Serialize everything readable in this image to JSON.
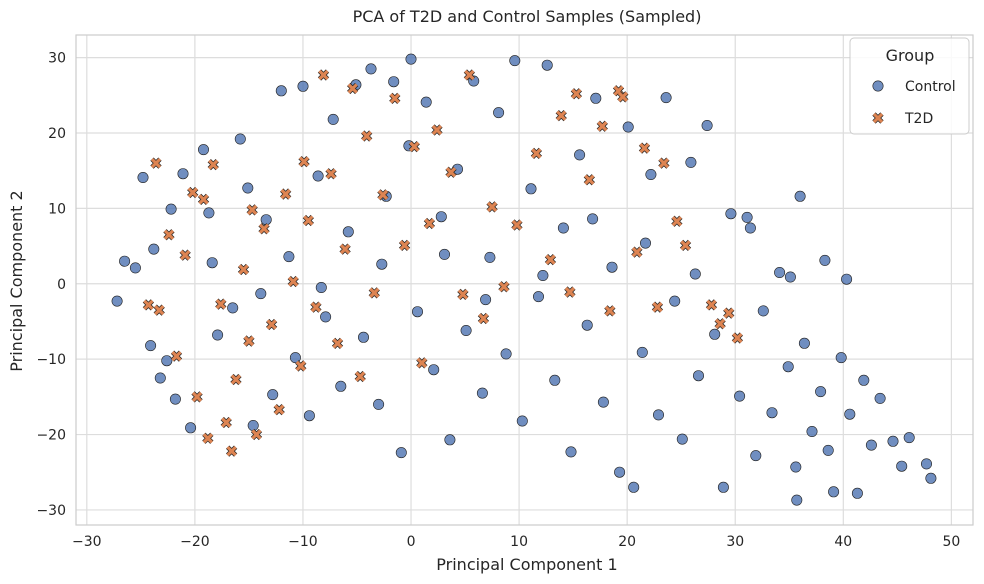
{
  "chart_data": {
    "type": "scatter",
    "title": "PCA of T2D and Control Samples (Sampled)",
    "xlabel": "Principal Component 1",
    "ylabel": "Principal Component 2",
    "xlim": [
      -31,
      52
    ],
    "ylim": [
      -32,
      33
    ],
    "xticks": [
      -30,
      -20,
      -10,
      0,
      10,
      20,
      30,
      40,
      50
    ],
    "yticks": [
      -30,
      -20,
      -10,
      0,
      10,
      20,
      30
    ],
    "xtick_labels": [
      "−30",
      "−20",
      "−10",
      "0",
      "10",
      "20",
      "30",
      "40",
      "50"
    ],
    "ytick_labels": [
      "−30",
      "−20",
      "−10",
      "0",
      "10",
      "20",
      "30"
    ],
    "grid": true,
    "legend": {
      "title": "Group",
      "placement": "top-right"
    },
    "series": [
      {
        "name": "Control",
        "marker": "circle",
        "color": "#4c72b0",
        "points": [
          [
            -27.2,
            -2.3
          ],
          [
            -26.5,
            3.0
          ],
          [
            -25.5,
            2.1
          ],
          [
            -24.8,
            14.1
          ],
          [
            -23.8,
            4.6
          ],
          [
            -23.2,
            -12.5
          ],
          [
            -22.6,
            -10.2
          ],
          [
            -21.8,
            -15.3
          ],
          [
            -21.1,
            14.6
          ],
          [
            -20.4,
            -19.1
          ],
          [
            -19.2,
            17.8
          ],
          [
            -18.7,
            9.4
          ],
          [
            -17.9,
            -6.8
          ],
          [
            -16.5,
            -3.2
          ],
          [
            -15.8,
            19.2
          ],
          [
            -15.1,
            12.7
          ],
          [
            -14.6,
            -18.8
          ],
          [
            -13.4,
            8.5
          ],
          [
            -12.8,
            -14.7
          ],
          [
            -12.0,
            25.6
          ],
          [
            -11.3,
            3.6
          ],
          [
            -10.7,
            -9.8
          ],
          [
            -10.0,
            26.2
          ],
          [
            -9.4,
            -17.5
          ],
          [
            -8.6,
            14.3
          ],
          [
            -7.9,
            -4.4
          ],
          [
            -7.2,
            21.8
          ],
          [
            -6.5,
            -13.6
          ],
          [
            -5.8,
            6.9
          ],
          [
            -5.1,
            26.4
          ],
          [
            -4.4,
            -7.1
          ],
          [
            -3.7,
            28.5
          ],
          [
            -3.0,
            -16.0
          ],
          [
            -2.3,
            11.6
          ],
          [
            -1.6,
            26.8
          ],
          [
            -0.9,
            -22.4
          ],
          [
            -0.2,
            18.3
          ],
          [
            0.0,
            29.8
          ],
          [
            0.6,
            -3.7
          ],
          [
            1.4,
            24.1
          ],
          [
            2.1,
            -11.4
          ],
          [
            2.8,
            8.9
          ],
          [
            3.6,
            -20.7
          ],
          [
            4.3,
            15.2
          ],
          [
            5.1,
            -6.2
          ],
          [
            5.8,
            26.9
          ],
          [
            6.6,
            -14.5
          ],
          [
            7.3,
            3.5
          ],
          [
            8.1,
            22.7
          ],
          [
            8.8,
            -9.3
          ],
          [
            9.6,
            29.6
          ],
          [
            10.3,
            -18.2
          ],
          [
            11.1,
            12.6
          ],
          [
            11.8,
            -1.7
          ],
          [
            12.6,
            29.0
          ],
          [
            13.3,
            -12.8
          ],
          [
            14.1,
            7.4
          ],
          [
            14.8,
            -22.3
          ],
          [
            15.6,
            17.1
          ],
          [
            16.3,
            -5.5
          ],
          [
            17.1,
            24.6
          ],
          [
            17.8,
            -15.7
          ],
          [
            18.6,
            2.2
          ],
          [
            19.3,
            -25.0
          ],
          [
            20.1,
            20.8
          ],
          [
            20.6,
            -27.0
          ],
          [
            21.4,
            -9.1
          ],
          [
            22.2,
            14.5
          ],
          [
            22.9,
            -17.4
          ],
          [
            23.6,
            24.7
          ],
          [
            24.4,
            -2.3
          ],
          [
            25.1,
            -20.6
          ],
          [
            25.9,
            16.1
          ],
          [
            26.6,
            -12.2
          ],
          [
            27.4,
            21.0
          ],
          [
            28.1,
            -6.7
          ],
          [
            28.9,
            -27.0
          ],
          [
            29.6,
            9.3
          ],
          [
            30.4,
            -14.9
          ],
          [
            31.1,
            8.8
          ],
          [
            31.9,
            -22.8
          ],
          [
            32.6,
            -3.6
          ],
          [
            33.4,
            -17.1
          ],
          [
            34.1,
            1.5
          ],
          [
            34.9,
            -11.0
          ],
          [
            35.6,
            -24.3
          ],
          [
            35.7,
            -28.7
          ],
          [
            36.4,
            -7.9
          ],
          [
            37.1,
            -19.6
          ],
          [
            37.9,
            -14.3
          ],
          [
            38.6,
            -22.1
          ],
          [
            39.1,
            -27.6
          ],
          [
            39.8,
            -9.8
          ],
          [
            40.6,
            -17.3
          ],
          [
            41.3,
            -27.8
          ],
          [
            41.9,
            -12.8
          ],
          [
            42.6,
            -21.4
          ],
          [
            43.4,
            -15.2
          ],
          [
            44.6,
            -20.9
          ],
          [
            45.4,
            -24.2
          ],
          [
            46.1,
            -20.4
          ],
          [
            47.7,
            -23.9
          ],
          [
            48.1,
            -25.8
          ],
          [
            -24.1,
            -8.2
          ],
          [
            -22.2,
            9.9
          ],
          [
            -18.4,
            2.8
          ],
          [
            -13.9,
            -1.3
          ],
          [
            -8.3,
            -0.5
          ],
          [
            -2.7,
            2.6
          ],
          [
            3.1,
            3.9
          ],
          [
            6.9,
            -2.1
          ],
          [
            12.2,
            1.1
          ],
          [
            16.8,
            8.6
          ],
          [
            21.7,
            5.4
          ],
          [
            26.3,
            1.3
          ],
          [
            35.1,
            0.9
          ],
          [
            38.3,
            3.1
          ],
          [
            40.3,
            0.6
          ],
          [
            36.0,
            11.6
          ],
          [
            31.4,
            7.4
          ]
        ]
      },
      {
        "name": "T2D",
        "marker": "x",
        "color": "#dd8452",
        "points": [
          [
            -23.6,
            16.0
          ],
          [
            -23.3,
            -3.5
          ],
          [
            -22.4,
            6.5
          ],
          [
            -21.7,
            -9.6
          ],
          [
            -20.9,
            3.8
          ],
          [
            -19.8,
            -15.0
          ],
          [
            -19.2,
            11.2
          ],
          [
            -18.8,
            -20.5
          ],
          [
            -18.3,
            15.8
          ],
          [
            -17.6,
            -2.7
          ],
          [
            -17.1,
            -18.4
          ],
          [
            -16.6,
            -22.2
          ],
          [
            -16.2,
            -12.7
          ],
          [
            -15.5,
            1.9
          ],
          [
            -15.0,
            -7.6
          ],
          [
            -14.3,
            -20.0
          ],
          [
            -13.6,
            7.3
          ],
          [
            -12.9,
            -5.4
          ],
          [
            -12.2,
            -16.7
          ],
          [
            -11.6,
            11.9
          ],
          [
            -10.9,
            0.3
          ],
          [
            -10.2,
            -10.9
          ],
          [
            -9.5,
            8.4
          ],
          [
            -8.8,
            -3.1
          ],
          [
            -8.1,
            27.7
          ],
          [
            -7.4,
            14.6
          ],
          [
            -6.8,
            -7.9
          ],
          [
            -6.1,
            4.6
          ],
          [
            -5.4,
            25.9
          ],
          [
            -4.7,
            -12.3
          ],
          [
            -4.1,
            19.6
          ],
          [
            -3.4,
            -1.2
          ],
          [
            -2.6,
            11.8
          ],
          [
            -1.5,
            24.6
          ],
          [
            -0.6,
            5.1
          ],
          [
            0.3,
            18.2
          ],
          [
            1.0,
            -10.5
          ],
          [
            1.7,
            8.0
          ],
          [
            2.4,
            20.4
          ],
          [
            3.7,
            14.8
          ],
          [
            4.8,
            -1.4
          ],
          [
            5.4,
            27.7
          ],
          [
            6.7,
            -4.6
          ],
          [
            7.5,
            10.2
          ],
          [
            8.6,
            -0.4
          ],
          [
            9.8,
            7.8
          ],
          [
            11.6,
            17.3
          ],
          [
            12.9,
            3.2
          ],
          [
            13.9,
            22.3
          ],
          [
            14.7,
            -1.1
          ],
          [
            15.3,
            25.2
          ],
          [
            16.5,
            13.8
          ],
          [
            17.7,
            20.9
          ],
          [
            18.4,
            -3.6
          ],
          [
            19.2,
            25.6
          ],
          [
            19.6,
            24.8
          ],
          [
            20.9,
            4.2
          ],
          [
            21.6,
            18.0
          ],
          [
            22.8,
            -3.1
          ],
          [
            23.4,
            16.0
          ],
          [
            24.6,
            8.3
          ],
          [
            25.4,
            5.1
          ],
          [
            27.8,
            -2.8
          ],
          [
            28.6,
            -5.3
          ],
          [
            29.4,
            -3.9
          ],
          [
            30.2,
            -7.2
          ],
          [
            -24.3,
            -2.8
          ],
          [
            -20.2,
            12.1
          ],
          [
            -14.7,
            9.8
          ],
          [
            -9.9,
            16.2
          ]
        ]
      }
    ]
  }
}
